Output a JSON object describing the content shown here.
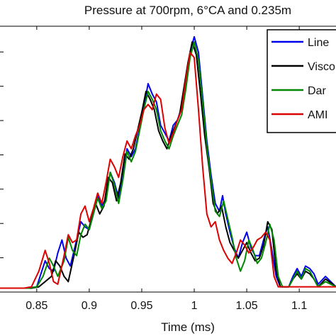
{
  "chart_data": {
    "type": "line",
    "title": "Pressure at 700rpm, 6°CA and 0.235m",
    "xlabel": "Time (ms)",
    "ylabel": "",
    "xlim": [
      0.815,
      1.135
    ],
    "ylim": [
      0,
      1.0
    ],
    "x_ticks": [
      0.85,
      0.9,
      0.95,
      1,
      1.05,
      1.1
    ],
    "x_tick_labels": [
      "0.85",
      "0.9",
      "0.95",
      "1",
      "1.05",
      "1.1"
    ],
    "y_tick_count": 7,
    "grid": false,
    "legend_position": "top-right",
    "series": [
      {
        "name": "Line",
        "color": "#0000ee",
        "points": [
          [
            0.815,
            0.015
          ],
          [
            0.84,
            0.015
          ],
          [
            0.85,
            0.02
          ],
          [
            0.858,
            0.12
          ],
          [
            0.862,
            0.09
          ],
          [
            0.866,
            0.08
          ],
          [
            0.87,
            0.15
          ],
          [
            0.874,
            0.2
          ],
          [
            0.878,
            0.13
          ],
          [
            0.882,
            0.1
          ],
          [
            0.888,
            0.2
          ],
          [
            0.892,
            0.27
          ],
          [
            0.896,
            0.25
          ],
          [
            0.9,
            0.24
          ],
          [
            0.904,
            0.3
          ],
          [
            0.908,
            0.37
          ],
          [
            0.912,
            0.33
          ],
          [
            0.916,
            0.36
          ],
          [
            0.92,
            0.46
          ],
          [
            0.924,
            0.42
          ],
          [
            0.928,
            0.36
          ],
          [
            0.932,
            0.44
          ],
          [
            0.936,
            0.55
          ],
          [
            0.94,
            0.52
          ],
          [
            0.944,
            0.55
          ],
          [
            0.948,
            0.63
          ],
          [
            0.952,
            0.71
          ],
          [
            0.956,
            0.8
          ],
          [
            0.96,
            0.76
          ],
          [
            0.964,
            0.73
          ],
          [
            0.968,
            0.64
          ],
          [
            0.972,
            0.61
          ],
          [
            0.976,
            0.58
          ],
          [
            0.98,
            0.64
          ],
          [
            0.984,
            0.66
          ],
          [
            0.988,
            0.71
          ],
          [
            0.992,
            0.8
          ],
          [
            0.996,
            0.92
          ],
          [
            1.0,
            0.98
          ],
          [
            1.004,
            0.92
          ],
          [
            1.008,
            0.75
          ],
          [
            1.012,
            0.58
          ],
          [
            1.016,
            0.45
          ],
          [
            1.02,
            0.34
          ],
          [
            1.024,
            0.31
          ],
          [
            1.027,
            0.37
          ],
          [
            1.03,
            0.3
          ],
          [
            1.034,
            0.23
          ],
          [
            1.038,
            0.17
          ],
          [
            1.042,
            0.13
          ],
          [
            1.046,
            0.19
          ],
          [
            1.05,
            0.23
          ],
          [
            1.054,
            0.17
          ],
          [
            1.058,
            0.14
          ],
          [
            1.062,
            0.14
          ],
          [
            1.066,
            0.2
          ],
          [
            1.07,
            0.25
          ],
          [
            1.074,
            0.16
          ],
          [
            1.078,
            0.06
          ],
          [
            1.082,
            0.02
          ],
          [
            1.09,
            0.02
          ],
          [
            1.094,
            0.06
          ],
          [
            1.098,
            0.09
          ],
          [
            1.102,
            0.06
          ],
          [
            1.106,
            0.1
          ],
          [
            1.11,
            0.09
          ],
          [
            1.114,
            0.07
          ],
          [
            1.118,
            0.03
          ],
          [
            1.125,
            0.06
          ],
          [
            1.135,
            0.02
          ]
        ]
      },
      {
        "name": "Visco",
        "color": "#000000",
        "points": [
          [
            0.815,
            0.015
          ],
          [
            0.845,
            0.015
          ],
          [
            0.852,
            0.02
          ],
          [
            0.858,
            0.04
          ],
          [
            0.864,
            0.06
          ],
          [
            0.868,
            0.12
          ],
          [
            0.872,
            0.1
          ],
          [
            0.876,
            0.06
          ],
          [
            0.88,
            0.04
          ],
          [
            0.886,
            0.15
          ],
          [
            0.89,
            0.23
          ],
          [
            0.894,
            0.21
          ],
          [
            0.898,
            0.22
          ],
          [
            0.902,
            0.28
          ],
          [
            0.906,
            0.34
          ],
          [
            0.91,
            0.3
          ],
          [
            0.914,
            0.33
          ],
          [
            0.918,
            0.44
          ],
          [
            0.922,
            0.42
          ],
          [
            0.926,
            0.35
          ],
          [
            0.93,
            0.42
          ],
          [
            0.934,
            0.53
          ],
          [
            0.938,
            0.51
          ],
          [
            0.942,
            0.55
          ],
          [
            0.946,
            0.62
          ],
          [
            0.95,
            0.69
          ],
          [
            0.954,
            0.77
          ],
          [
            0.958,
            0.74
          ],
          [
            0.962,
            0.7
          ],
          [
            0.966,
            0.62
          ],
          [
            0.97,
            0.58
          ],
          [
            0.974,
            0.55
          ],
          [
            0.978,
            0.6
          ],
          [
            0.982,
            0.64
          ],
          [
            0.986,
            0.68
          ],
          [
            0.99,
            0.78
          ],
          [
            0.994,
            0.88
          ],
          [
            0.998,
            0.96
          ],
          [
            1.002,
            0.91
          ],
          [
            1.006,
            0.76
          ],
          [
            1.01,
            0.6
          ],
          [
            1.014,
            0.48
          ],
          [
            1.018,
            0.34
          ],
          [
            1.022,
            0.3
          ],
          [
            1.026,
            0.33
          ],
          [
            1.03,
            0.25
          ],
          [
            1.034,
            0.19
          ],
          [
            1.038,
            0.16
          ],
          [
            1.042,
            0.13
          ],
          [
            1.046,
            0.16
          ],
          [
            1.05,
            0.19
          ],
          [
            1.054,
            0.15
          ],
          [
            1.058,
            0.12
          ],
          [
            1.062,
            0.13
          ],
          [
            1.066,
            0.18
          ],
          [
            1.07,
            0.27
          ],
          [
            1.074,
            0.24
          ],
          [
            1.078,
            0.08
          ],
          [
            1.082,
            0.02
          ],
          [
            1.09,
            0.02
          ],
          [
            1.094,
            0.05
          ],
          [
            1.098,
            0.07
          ],
          [
            1.102,
            0.05
          ],
          [
            1.106,
            0.08
          ],
          [
            1.11,
            0.07
          ],
          [
            1.114,
            0.05
          ],
          [
            1.118,
            0.02
          ],
          [
            1.125,
            0.05
          ],
          [
            1.135,
            0.02
          ]
        ]
      },
      {
        "name": "Dar",
        "color": "#008800",
        "points": [
          [
            0.815,
            0.015
          ],
          [
            0.842,
            0.015
          ],
          [
            0.85,
            0.02
          ],
          [
            0.856,
            0.06
          ],
          [
            0.862,
            0.13
          ],
          [
            0.866,
            0.1
          ],
          [
            0.87,
            0.06
          ],
          [
            0.876,
            0.12
          ],
          [
            0.88,
            0.21
          ],
          [
            0.884,
            0.16
          ],
          [
            0.888,
            0.14
          ],
          [
            0.892,
            0.22
          ],
          [
            0.896,
            0.26
          ],
          [
            0.9,
            0.24
          ],
          [
            0.904,
            0.3
          ],
          [
            0.908,
            0.36
          ],
          [
            0.912,
            0.32
          ],
          [
            0.916,
            0.35
          ],
          [
            0.92,
            0.46
          ],
          [
            0.924,
            0.41
          ],
          [
            0.928,
            0.34
          ],
          [
            0.932,
            0.43
          ],
          [
            0.936,
            0.54
          ],
          [
            0.94,
            0.5
          ],
          [
            0.944,
            0.54
          ],
          [
            0.948,
            0.62
          ],
          [
            0.952,
            0.7
          ],
          [
            0.956,
            0.77
          ],
          [
            0.96,
            0.74
          ],
          [
            0.964,
            0.7
          ],
          [
            0.968,
            0.62
          ],
          [
            0.972,
            0.58
          ],
          [
            0.976,
            0.55
          ],
          [
            0.98,
            0.6
          ],
          [
            0.984,
            0.64
          ],
          [
            0.988,
            0.68
          ],
          [
            0.992,
            0.78
          ],
          [
            0.996,
            0.9
          ],
          [
            1.0,
            0.96
          ],
          [
            1.004,
            0.89
          ],
          [
            1.008,
            0.73
          ],
          [
            1.012,
            0.56
          ],
          [
            1.016,
            0.43
          ],
          [
            1.02,
            0.31
          ],
          [
            1.024,
            0.29
          ],
          [
            1.028,
            0.35
          ],
          [
            1.032,
            0.28
          ],
          [
            1.036,
            0.21
          ],
          [
            1.04,
            0.13
          ],
          [
            1.044,
            0.08
          ],
          [
            1.048,
            0.12
          ],
          [
            1.052,
            0.2
          ],
          [
            1.056,
            0.16
          ],
          [
            1.06,
            0.11
          ],
          [
            1.064,
            0.13
          ],
          [
            1.068,
            0.19
          ],
          [
            1.072,
            0.26
          ],
          [
            1.076,
            0.2
          ],
          [
            1.08,
            0.06
          ],
          [
            1.084,
            0.02
          ],
          [
            1.09,
            0.02
          ],
          [
            1.094,
            0.05
          ],
          [
            1.098,
            0.08
          ],
          [
            1.102,
            0.05
          ],
          [
            1.106,
            0.09
          ],
          [
            1.11,
            0.08
          ],
          [
            1.114,
            0.05
          ],
          [
            1.118,
            0.02
          ],
          [
            1.125,
            0.04
          ],
          [
            1.135,
            0.02
          ]
        ]
      },
      {
        "name": "AMI",
        "color": "#dd0000",
        "points": [
          [
            0.815,
            0.015
          ],
          [
            0.838,
            0.015
          ],
          [
            0.845,
            0.02
          ],
          [
            0.852,
            0.08
          ],
          [
            0.858,
            0.16
          ],
          [
            0.862,
            0.11
          ],
          [
            0.866,
            0.04
          ],
          [
            0.87,
            0.03
          ],
          [
            0.876,
            0.14
          ],
          [
            0.88,
            0.22
          ],
          [
            0.884,
            0.19
          ],
          [
            0.888,
            0.2
          ],
          [
            0.892,
            0.3
          ],
          [
            0.896,
            0.33
          ],
          [
            0.9,
            0.27
          ],
          [
            0.904,
            0.32
          ],
          [
            0.908,
            0.38
          ],
          [
            0.912,
            0.34
          ],
          [
            0.916,
            0.42
          ],
          [
            0.92,
            0.51
          ],
          [
            0.924,
            0.48
          ],
          [
            0.928,
            0.44
          ],
          [
            0.932,
            0.52
          ],
          [
            0.936,
            0.58
          ],
          [
            0.94,
            0.55
          ],
          [
            0.944,
            0.6
          ],
          [
            0.948,
            0.64
          ],
          [
            0.952,
            0.7
          ],
          [
            0.956,
            0.72
          ],
          [
            0.96,
            0.7
          ],
          [
            0.964,
            0.76
          ],
          [
            0.968,
            0.74
          ],
          [
            0.972,
            0.63
          ],
          [
            0.976,
            0.57
          ],
          [
            0.98,
            0.61
          ],
          [
            0.984,
            0.66
          ],
          [
            0.988,
            0.7
          ],
          [
            0.992,
            0.82
          ],
          [
            0.996,
            0.92
          ],
          [
            1.0,
            0.9
          ],
          [
            1.004,
            0.7
          ],
          [
            1.008,
            0.48
          ],
          [
            1.012,
            0.3
          ],
          [
            1.016,
            0.25
          ],
          [
            1.02,
            0.27
          ],
          [
            1.024,
            0.2
          ],
          [
            1.028,
            0.16
          ],
          [
            1.032,
            0.13
          ],
          [
            1.036,
            0.11
          ],
          [
            1.04,
            0.15
          ],
          [
            1.044,
            0.2
          ],
          [
            1.048,
            0.18
          ],
          [
            1.052,
            0.15
          ],
          [
            1.056,
            0.17
          ],
          [
            1.06,
            0.2
          ],
          [
            1.064,
            0.21
          ],
          [
            1.068,
            0.23
          ],
          [
            1.072,
            0.2
          ],
          [
            1.076,
            0.06
          ],
          [
            1.08,
            0.02
          ],
          [
            1.135,
            0.02
          ]
        ]
      }
    ]
  }
}
